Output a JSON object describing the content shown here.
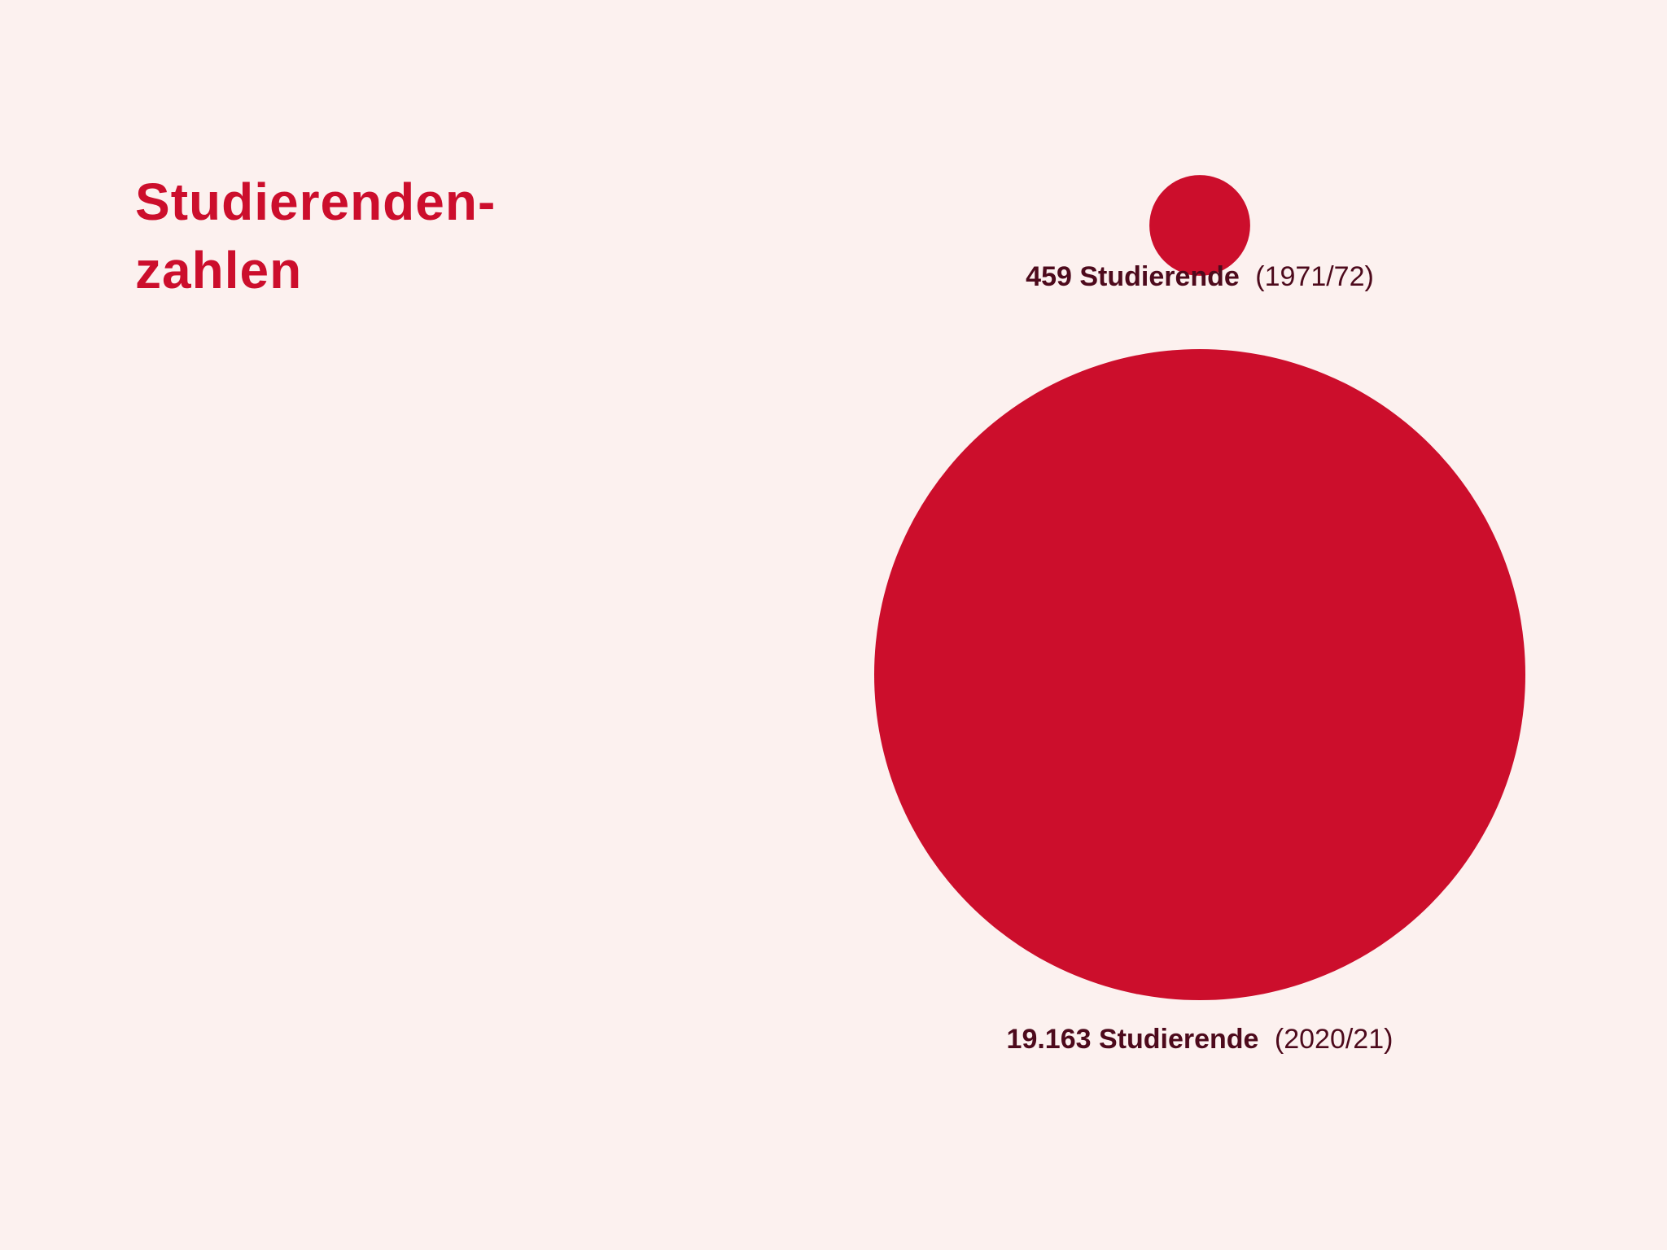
{
  "title": {
    "line1": "Studierenden-",
    "line2": "zahlen"
  },
  "colors": {
    "background": "#fcf1ef",
    "accent": "#cc0e2c",
    "label_text": "#4d0a1c"
  },
  "chart_data": {
    "type": "bubble",
    "title": "Studierenden-zahlen",
    "encoding": "circle area proportional to value",
    "series": [
      {
        "value": 459,
        "value_label": "459 Studierende",
        "period": "(1971/72)"
      },
      {
        "value": 19163,
        "value_label": "19.163 Studierende",
        "period": "(2020/21)"
      }
    ]
  }
}
